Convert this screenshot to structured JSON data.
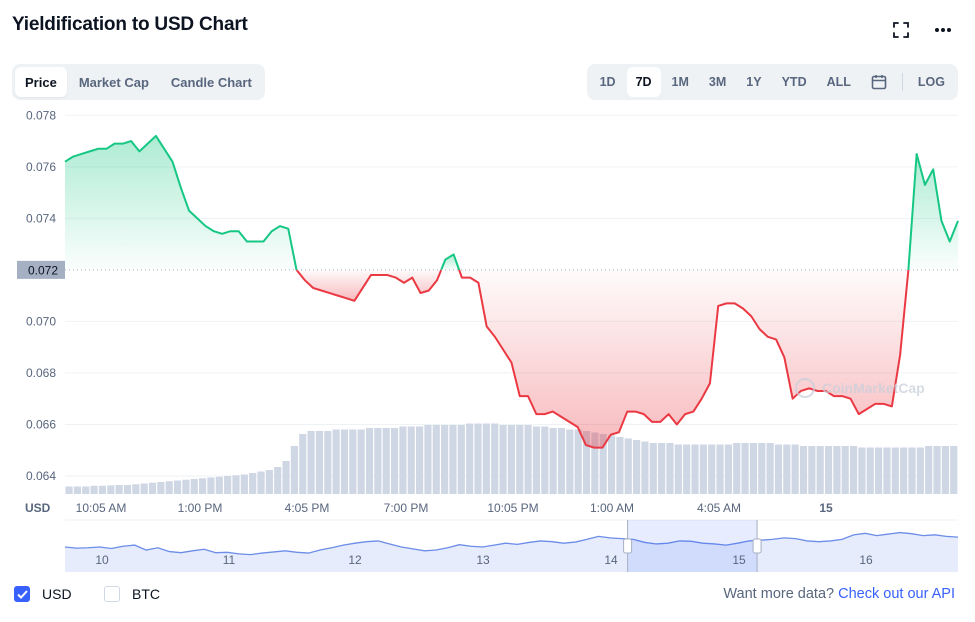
{
  "header": {
    "title": "Yieldification to USD Chart"
  },
  "icons": {
    "fullscreen": "fullscreen-icon",
    "more": "more-icon",
    "calendar": "calendar-icon"
  },
  "tabs": [
    {
      "label": "Price",
      "active": true
    },
    {
      "label": "Market Cap",
      "active": false
    },
    {
      "label": "Candle Chart",
      "active": false
    }
  ],
  "ranges": [
    {
      "label": "1D",
      "active": false
    },
    {
      "label": "7D",
      "active": true
    },
    {
      "label": "1M",
      "active": false
    },
    {
      "label": "3M",
      "active": false
    },
    {
      "label": "1Y",
      "active": false
    },
    {
      "label": "YTD",
      "active": false
    },
    {
      "label": "ALL",
      "active": false
    }
  ],
  "log_label": "LOG",
  "colors": {
    "up": "#16c784",
    "down": "#ea3943",
    "accent": "#3861fb",
    "volume": "#cfd6e4",
    "navigator": "#6c8de8"
  },
  "chart_data": {
    "type": "line",
    "y_axis_label": "USD",
    "y_ticks": [
      "0.078",
      "0.076",
      "0.074",
      "0.072",
      "0.070",
      "0.068",
      "0.066",
      "0.064"
    ],
    "ylim": [
      0.0633,
      0.0784
    ],
    "baseline": 0.072,
    "baseline_label": "0.072",
    "x_ticks": [
      "10:05 AM",
      "1:00 PM",
      "4:05 PM",
      "7:00 PM",
      "10:05 PM",
      "1:00 AM",
      "4:05 AM",
      "15"
    ],
    "grid": true,
    "watermark": "CoinMarketCap",
    "series": [
      {
        "values": [
          0.0762,
          0.0764,
          0.0765,
          0.0766,
          0.0767,
          0.0767,
          0.0769,
          0.0769,
          0.077,
          0.0766,
          0.0769,
          0.0772,
          0.0767,
          0.0762,
          0.0752,
          0.0743,
          0.074,
          0.0737,
          0.0735,
          0.0734,
          0.0735,
          0.0735,
          0.0731,
          0.0731,
          0.0731,
          0.0735,
          0.0737,
          0.0736,
          0.072,
          0.0716,
          0.0713,
          0.0712,
          0.0711,
          0.071,
          0.0709,
          0.0708,
          0.0713,
          0.0718,
          0.0718,
          0.0718,
          0.0717,
          0.0715,
          0.0717,
          0.0711,
          0.0712,
          0.0716,
          0.0724,
          0.0726,
          0.0717,
          0.0717,
          0.0715,
          0.0698,
          0.0694,
          0.0689,
          0.0684,
          0.0671,
          0.0671,
          0.0664,
          0.0664,
          0.0665,
          0.0663,
          0.0661,
          0.0659,
          0.0652,
          0.0651,
          0.0651,
          0.0656,
          0.0657,
          0.0665,
          0.0665,
          0.0664,
          0.0661,
          0.0661,
          0.0664,
          0.066,
          0.0664,
          0.0665,
          0.067,
          0.0676,
          0.0706,
          0.0707,
          0.0707,
          0.0705,
          0.0702,
          0.0697,
          0.0694,
          0.0693,
          0.0686,
          0.067,
          0.0673,
          0.0674,
          0.0673,
          0.0673,
          0.0671,
          0.0671,
          0.067,
          0.0664,
          0.0666,
          0.0668,
          0.0668,
          0.0667,
          0.0687,
          0.072,
          0.0765,
          0.0753,
          0.0759,
          0.0739,
          0.0731,
          0.0739
        ]
      }
    ],
    "volume_relative": [
      0.05,
      0.05,
      0.05,
      0.055,
      0.055,
      0.057,
      0.06,
      0.06,
      0.065,
      0.07,
      0.075,
      0.08,
      0.085,
      0.09,
      0.095,
      0.1,
      0.105,
      0.11,
      0.115,
      0.12,
      0.125,
      0.13,
      0.14,
      0.15,
      0.16,
      0.18,
      0.22,
      0.32,
      0.4,
      0.42,
      0.42,
      0.42,
      0.43,
      0.43,
      0.43,
      0.43,
      0.44,
      0.44,
      0.44,
      0.44,
      0.45,
      0.45,
      0.45,
      0.46,
      0.46,
      0.46,
      0.46,
      0.46,
      0.47,
      0.47,
      0.47,
      0.47,
      0.46,
      0.46,
      0.46,
      0.46,
      0.45,
      0.45,
      0.44,
      0.44,
      0.43,
      0.43,
      0.42,
      0.41,
      0.4,
      0.39,
      0.38,
      0.37,
      0.36,
      0.35,
      0.34,
      0.34,
      0.34,
      0.33,
      0.33,
      0.33,
      0.33,
      0.33,
      0.33,
      0.33,
      0.34,
      0.34,
      0.34,
      0.34,
      0.34,
      0.33,
      0.33,
      0.33,
      0.32,
      0.32,
      0.32,
      0.32,
      0.32,
      0.32,
      0.32,
      0.31,
      0.31,
      0.31,
      0.31,
      0.31,
      0.31,
      0.31,
      0.31,
      0.32,
      0.32,
      0.32,
      0.32
    ],
    "navigator": {
      "labels": [
        "10",
        "11",
        "12",
        "13",
        "14",
        "15",
        "16"
      ],
      "values": [
        0.5,
        0.47,
        0.48,
        0.5,
        0.46,
        0.52,
        0.55,
        0.42,
        0.48,
        0.38,
        0.35,
        0.4,
        0.44,
        0.35,
        0.36,
        0.32,
        0.3,
        0.34,
        0.37,
        0.4,
        0.36,
        0.34,
        0.42,
        0.48,
        0.55,
        0.6,
        0.64,
        0.66,
        0.58,
        0.5,
        0.45,
        0.4,
        0.42,
        0.48,
        0.56,
        0.52,
        0.5,
        0.55,
        0.6,
        0.57,
        0.62,
        0.66,
        0.64,
        0.6,
        0.63,
        0.7,
        0.78,
        0.74,
        0.72,
        0.7,
        0.62,
        0.58,
        0.6,
        0.66,
        0.65,
        0.6,
        0.58,
        0.55,
        0.6,
        0.66,
        0.68,
        0.7,
        0.74,
        0.72,
        0.66,
        0.64,
        0.66,
        0.7,
        0.82,
        0.86,
        0.8,
        0.84,
        0.88,
        0.85,
        0.8,
        0.82,
        0.78,
        0.76
      ],
      "selection": [
        0.63,
        0.775
      ]
    }
  },
  "footer": {
    "usd_label": "USD",
    "usd_checked": true,
    "btc_label": "BTC",
    "btc_checked": false,
    "api_prefix": "Want more data?",
    "api_link": "Check out our API"
  }
}
